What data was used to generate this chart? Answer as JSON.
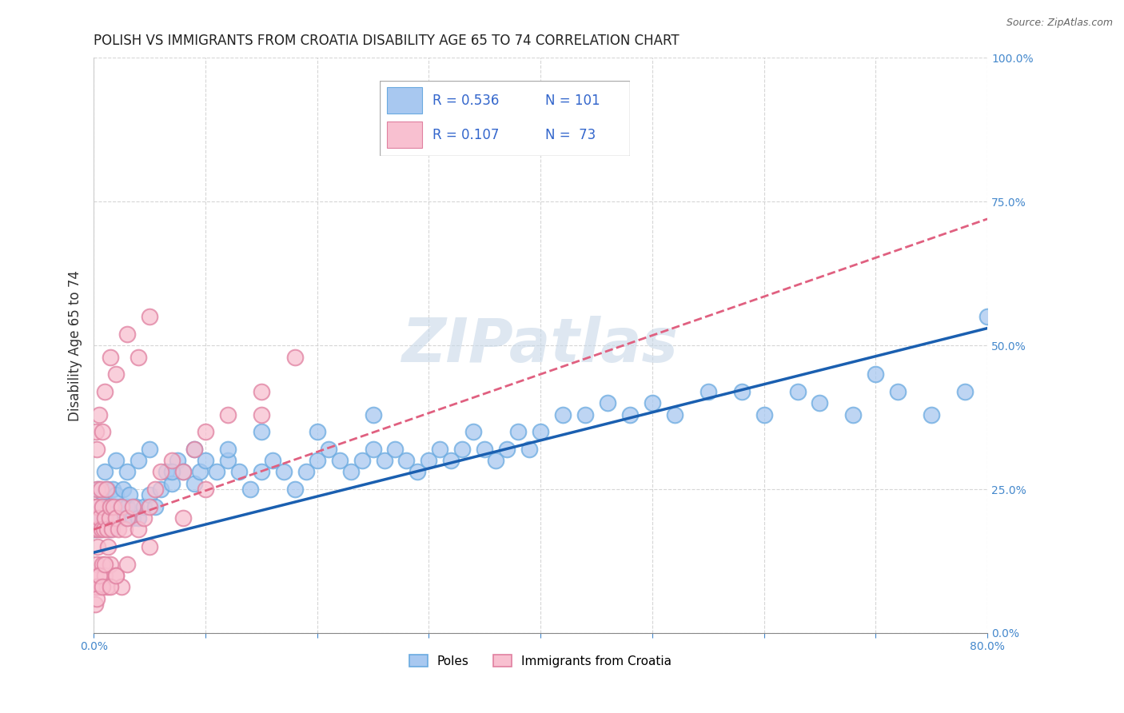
{
  "title": "POLISH VS IMMIGRANTS FROM CROATIA DISABILITY AGE 65 TO 74 CORRELATION CHART",
  "source": "Source: ZipAtlas.com",
  "ylabel": "Disability Age 65 to 74",
  "watermark": "ZIPatlas",
  "blue_color": "#a8c8f0",
  "blue_edge_color": "#6aaae0",
  "blue_line_color": "#1a5fb0",
  "pink_color": "#f8c0d0",
  "pink_edge_color": "#e080a0",
  "pink_line_color": "#e06080",
  "xmin": 0.0,
  "xmax": 80.0,
  "ymin": 0.0,
  "ymax": 100.0,
  "blue_trend_x": [
    0.0,
    80.0
  ],
  "blue_trend_y": [
    14.0,
    53.0
  ],
  "pink_trend_x": [
    0.0,
    80.0
  ],
  "pink_trend_y": [
    18.0,
    72.0
  ],
  "blue_scatter_x": [
    0.1,
    0.2,
    0.3,
    0.4,
    0.5,
    0.6,
    0.7,
    0.8,
    0.9,
    1.0,
    1.1,
    1.2,
    1.3,
    1.4,
    1.5,
    1.6,
    1.7,
    1.8,
    1.9,
    2.0,
    2.2,
    2.4,
    2.6,
    2.8,
    3.0,
    3.2,
    3.5,
    3.8,
    4.0,
    4.5,
    5.0,
    5.5,
    6.0,
    6.5,
    7.0,
    7.5,
    8.0,
    9.0,
    9.5,
    10.0,
    11.0,
    12.0,
    13.0,
    14.0,
    15.0,
    16.0,
    17.0,
    18.0,
    19.0,
    20.0,
    21.0,
    22.0,
    23.0,
    24.0,
    25.0,
    26.0,
    27.0,
    28.0,
    29.0,
    30.0,
    31.0,
    32.0,
    33.0,
    34.0,
    35.0,
    36.0,
    37.0,
    38.0,
    39.0,
    40.0,
    42.0,
    44.0,
    46.0,
    48.0,
    50.0,
    52.0,
    55.0,
    58.0,
    60.0,
    63.0,
    65.0,
    68.0,
    70.0,
    72.0,
    75.0,
    78.0,
    80.0,
    1.0,
    2.0,
    3.0,
    4.0,
    5.0,
    7.0,
    9.0,
    12.0,
    15.0,
    20.0,
    25.0
  ],
  "blue_scatter_y": [
    20,
    18,
    22,
    25,
    20,
    18,
    22,
    20,
    24,
    22,
    20,
    25,
    22,
    18,
    20,
    22,
    25,
    20,
    22,
    24,
    20,
    22,
    25,
    20,
    22,
    24,
    20,
    22,
    20,
    22,
    24,
    22,
    25,
    28,
    26,
    30,
    28,
    26,
    28,
    30,
    28,
    30,
    28,
    25,
    28,
    30,
    28,
    25,
    28,
    30,
    32,
    30,
    28,
    30,
    32,
    30,
    32,
    30,
    28,
    30,
    32,
    30,
    32,
    35,
    32,
    30,
    32,
    35,
    32,
    35,
    38,
    38,
    40,
    38,
    40,
    38,
    42,
    42,
    38,
    42,
    40,
    38,
    45,
    42,
    38,
    42,
    55,
    28,
    30,
    28,
    30,
    32,
    28,
    32,
    32,
    35,
    35,
    38
  ],
  "pink_scatter_x": [
    0.1,
    0.15,
    0.2,
    0.25,
    0.3,
    0.35,
    0.4,
    0.5,
    0.6,
    0.7,
    0.8,
    0.9,
    1.0,
    1.1,
    1.2,
    1.3,
    1.4,
    1.5,
    1.6,
    1.8,
    2.0,
    2.2,
    2.5,
    2.8,
    3.0,
    3.5,
    4.0,
    4.5,
    5.0,
    5.5,
    6.0,
    7.0,
    8.0,
    9.0,
    10.0,
    12.0,
    15.0,
    18.0,
    0.1,
    0.2,
    0.3,
    0.4,
    0.5,
    0.6,
    0.8,
    1.0,
    1.2,
    1.5,
    2.0,
    2.5,
    0.2,
    0.3,
    0.5,
    0.8,
    1.0,
    1.5,
    2.0,
    3.0,
    4.0,
    5.0,
    0.1,
    0.2,
    0.3,
    0.5,
    0.8,
    1.0,
    1.5,
    2.0,
    3.0,
    5.0,
    8.0,
    10.0,
    15.0
  ],
  "pink_scatter_y": [
    22,
    18,
    20,
    25,
    22,
    15,
    18,
    20,
    25,
    18,
    22,
    18,
    20,
    25,
    18,
    15,
    20,
    22,
    18,
    22,
    20,
    18,
    22,
    18,
    20,
    22,
    18,
    20,
    22,
    25,
    28,
    30,
    28,
    32,
    35,
    38,
    42,
    48,
    10,
    8,
    12,
    8,
    10,
    8,
    12,
    10,
    8,
    12,
    10,
    8,
    35,
    32,
    38,
    35,
    42,
    48,
    45,
    52,
    48,
    55,
    5,
    8,
    6,
    10,
    8,
    12,
    8,
    10,
    12,
    15,
    20,
    25,
    38
  ]
}
